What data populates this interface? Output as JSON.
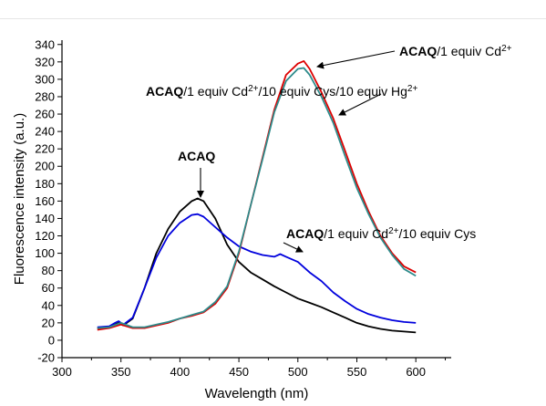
{
  "chart_data": {
    "type": "line",
    "title": "",
    "xlabel": "Wavelength (nm)",
    "ylabel": "Fluorescence intensity (a.u.)",
    "xlim": [
      300,
      630
    ],
    "ylim": [
      -20,
      345
    ],
    "xticks": [
      300,
      350,
      400,
      450,
      500,
      550,
      600
    ],
    "yticks": [
      -20,
      0,
      20,
      40,
      60,
      80,
      100,
      120,
      140,
      160,
      180,
      200,
      220,
      240,
      260,
      280,
      300,
      320,
      340
    ],
    "grid": false,
    "series": [
      {
        "color": "#000000",
        "x": [
          330,
          340,
          345,
          348,
          352,
          360,
          370,
          380,
          390,
          400,
          410,
          415,
          420,
          430,
          440,
          450,
          460,
          470,
          480,
          490,
          500,
          510,
          520,
          530,
          540,
          550,
          560,
          570,
          580,
          590,
          600
        ],
        "y": [
          14,
          15,
          18,
          20,
          17,
          25,
          60,
          100,
          128,
          148,
          160,
          163,
          160,
          140,
          110,
          90,
          78,
          70,
          62,
          55,
          48,
          43,
          38,
          32,
          26,
          20,
          16,
          13,
          11,
          10,
          9
        ]
      },
      {
        "color": "#0000dd",
        "x": [
          330,
          340,
          345,
          348,
          352,
          360,
          370,
          380,
          390,
          400,
          410,
          415,
          420,
          430,
          440,
          450,
          460,
          470,
          480,
          485,
          490,
          500,
          510,
          520,
          530,
          540,
          550,
          560,
          570,
          580,
          590,
          600
        ],
        "y": [
          15,
          16,
          20,
          22,
          18,
          26,
          60,
          95,
          120,
          135,
          144,
          145,
          142,
          130,
          118,
          108,
          102,
          98,
          96,
          99,
          96,
          90,
          78,
          68,
          55,
          45,
          36,
          30,
          26,
          23,
          21,
          20
        ]
      },
      {
        "color": "#dd0000",
        "x": [
          330,
          340,
          350,
          360,
          370,
          380,
          390,
          400,
          410,
          420,
          430,
          440,
          450,
          460,
          470,
          480,
          490,
          500,
          505,
          510,
          520,
          530,
          540,
          550,
          560,
          570,
          580,
          590,
          600
        ],
        "y": [
          12,
          14,
          18,
          14,
          14,
          17,
          20,
          25,
          28,
          32,
          42,
          60,
          100,
          155,
          210,
          265,
          305,
          318,
          321,
          312,
          285,
          255,
          218,
          180,
          148,
          120,
          100,
          85,
          78
        ]
      },
      {
        "color": "#2e8b8b",
        "x": [
          330,
          340,
          350,
          360,
          370,
          380,
          390,
          400,
          410,
          420,
          430,
          440,
          450,
          460,
          470,
          480,
          490,
          500,
          505,
          510,
          520,
          530,
          540,
          550,
          560,
          570,
          580,
          590,
          600
        ],
        "y": [
          14,
          15,
          20,
          15,
          15,
          18,
          21,
          25,
          29,
          33,
          44,
          62,
          102,
          155,
          208,
          262,
          298,
          312,
          313,
          305,
          280,
          250,
          212,
          175,
          145,
          118,
          98,
          82,
          74
        ]
      }
    ],
    "annotations": [
      {
        "parts": [
          {
            "t": "ACAQ",
            "b": true
          },
          {
            "t": "/1 equiv Cd"
          },
          {
            "t": "2+",
            "sup": true
          }
        ]
      },
      {
        "parts": [
          {
            "t": "ACAQ",
            "b": true
          },
          {
            "t": "/1 equiv Cd"
          },
          {
            "t": "2+",
            "sup": true
          },
          {
            "t": "/10 equiv Cys/10 equiv Hg"
          },
          {
            "t": "2+",
            "sup": true
          }
        ]
      },
      {
        "parts": [
          {
            "t": "ACAQ",
            "b": true
          }
        ]
      },
      {
        "parts": [
          {
            "t": "ACAQ",
            "b": true
          },
          {
            "t": "/1 equiv Cd"
          },
          {
            "t": "2+",
            "sup": true
          },
          {
            "t": "/10 equiv Cys"
          }
        ]
      }
    ]
  }
}
